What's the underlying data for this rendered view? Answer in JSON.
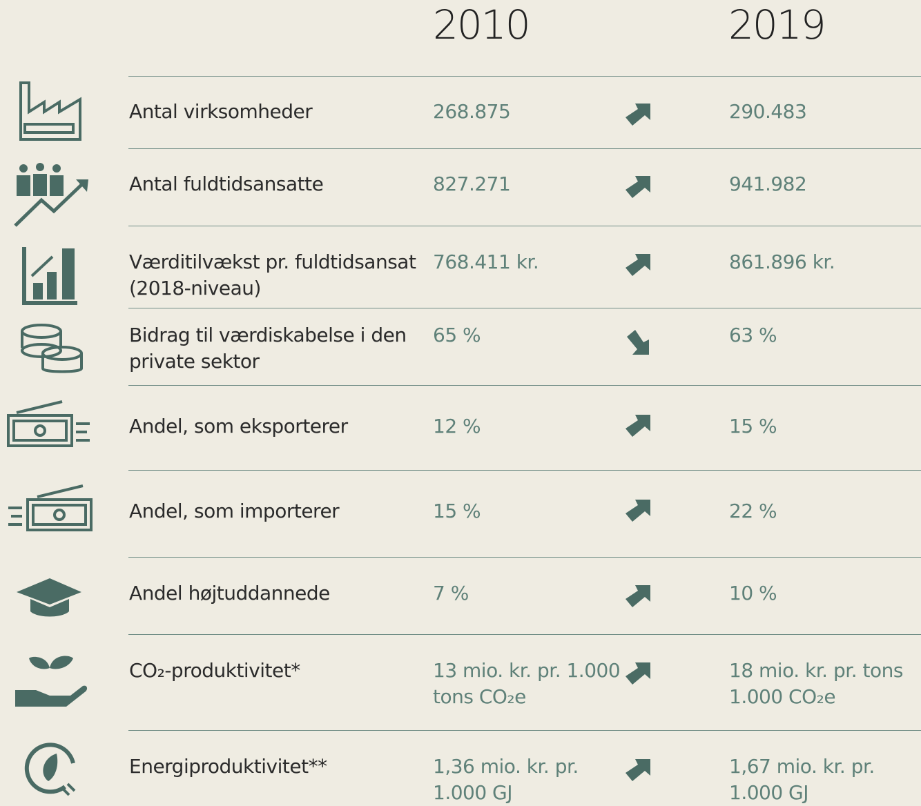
{
  "header": {
    "years": [
      "2010",
      "2019"
    ]
  },
  "rows": [
    {
      "label": "Antal virksomheder",
      "v2010": "268.875",
      "trend": "up",
      "v2019": "290.483"
    },
    {
      "label": "Antal fuldtidsansatte",
      "v2010": "827.271",
      "trend": "up",
      "v2019": "941.982"
    },
    {
      "label": "Værditilvækst pr. fuldtidsansat\n(2018-niveau)",
      "v2010": "768.411 kr.",
      "trend": "up",
      "v2019": "861.896 kr."
    },
    {
      "label": "Bidrag til værdiskabelse i den\nprivate sektor",
      "v2010": "65 %",
      "trend": "down",
      "v2019": "63 %"
    },
    {
      "label": "Andel, som eksporterer",
      "v2010": "12 %",
      "trend": "up",
      "v2019": "15 %"
    },
    {
      "label": "Andel, som importerer",
      "v2010": "15 %",
      "trend": "up",
      "v2019": "22 %"
    },
    {
      "label": "Andel højtuddannede",
      "v2010": "7 %",
      "trend": "up",
      "v2019": "10 %"
    },
    {
      "label": "CO₂-produktivitet*",
      "v2010": "13 mio. kr. pr. 1.000\ntons CO₂e",
      "trend": "up",
      "v2019": "18 mio. kr. pr. tons\n1.000 CO₂e"
    },
    {
      "label": "Energiproduktivitet**",
      "v2010": "1,36 mio. kr. pr.\n1.000 GJ",
      "trend": "up",
      "v2019": "1,67 mio. kr. pr.\n1.000 GJ"
    }
  ]
}
